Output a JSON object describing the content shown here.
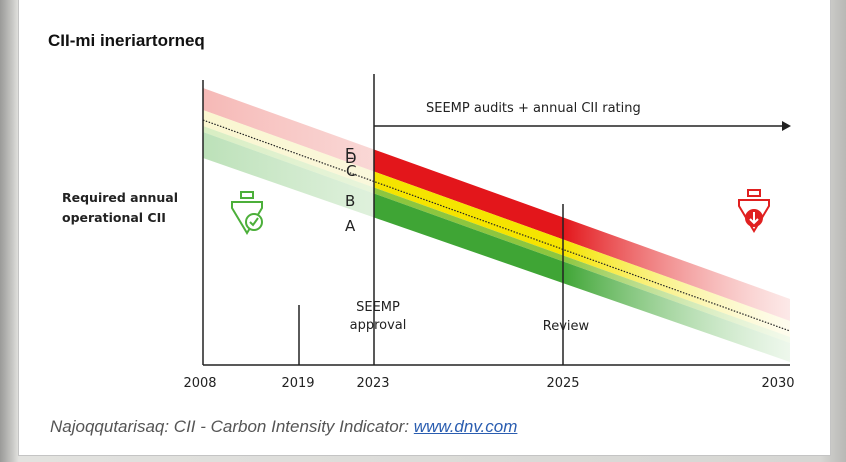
{
  "title": "CII-mi ineriartorneq",
  "diagram": {
    "y_label": [
      "Required annual",
      "operational CII"
    ],
    "arrow_label": "SEEMP audits + annual CII rating",
    "ratings": [
      "E",
      "D",
      "C",
      "B",
      "A"
    ],
    "years": [
      "2008",
      "2019",
      "2023",
      "2025",
      "2030"
    ],
    "seemp": [
      "SEEMP",
      "approval"
    ],
    "review": "Review"
  },
  "caption": {
    "text": "Najoqqutarisaq: CII - Carbon Intensity Indicator: ",
    "link": "www.dnv.com"
  }
}
